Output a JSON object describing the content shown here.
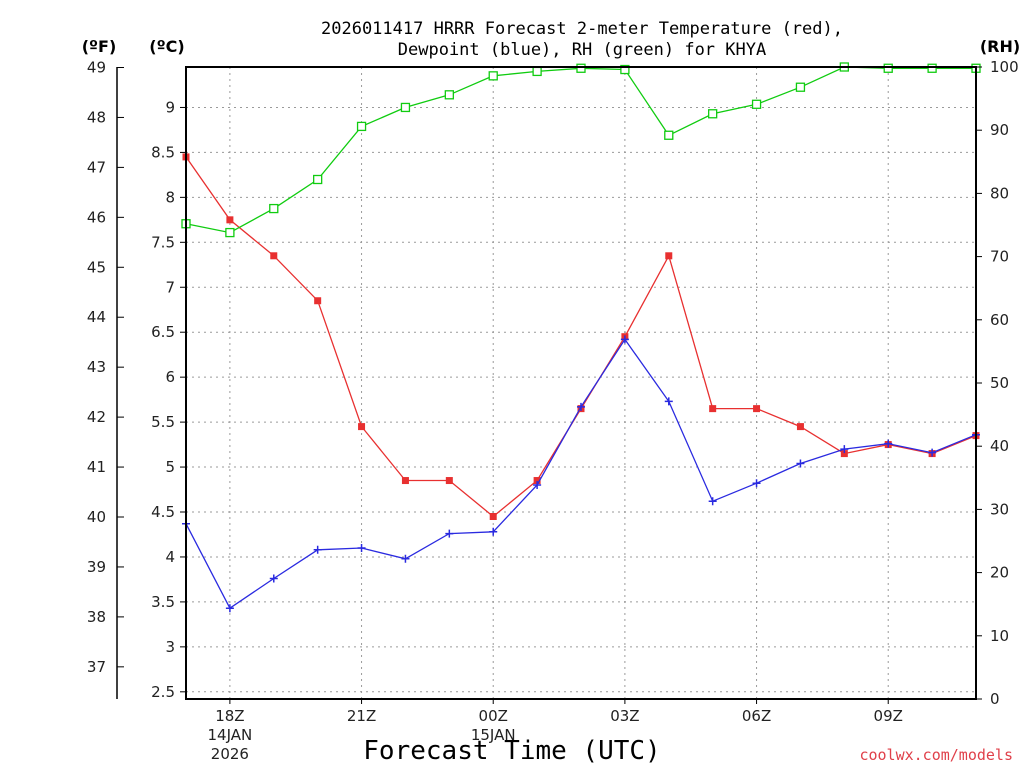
{
  "chart_data": {
    "type": "line",
    "title_line1": "2026011417 HRRR Forecast 2-meter Temperature (red),",
    "title_line2": "Dewpoint (blue), RH (green) for KHYA",
    "unit_f": "(ºF)",
    "unit_c": "(ºC)",
    "unit_rh": "(RH)",
    "xlabel": "Forecast Time (UTC)",
    "credit": "coolwx.com/models",
    "colors": {
      "temp": "#e83030",
      "dewpoint": "#2a2ae0",
      "rh": "#10cc10"
    },
    "x_hours": [
      17,
      18,
      19,
      20,
      21,
      22,
      23,
      24,
      25,
      26,
      27,
      28,
      29,
      30,
      31,
      32,
      33,
      34,
      35
    ],
    "ylim_c": [
      2.42,
      9.45
    ],
    "ylim_f": [
      36.356,
      49.01
    ],
    "ylim_rh": [
      0,
      100
    ],
    "y_ticks_c": [
      "2.5",
      "3",
      "3.5",
      "4",
      "4.5",
      "5",
      "5.5",
      "6",
      "6.5",
      "7",
      "7.5",
      "8",
      "8.5",
      "9"
    ],
    "y_ticks_f": [
      "37",
      "38",
      "39",
      "40",
      "41",
      "42",
      "43",
      "44",
      "45",
      "46",
      "47",
      "48",
      "49"
    ],
    "y_ticks_rh": [
      "0",
      "10",
      "20",
      "30",
      "40",
      "50",
      "60",
      "70",
      "80",
      "90",
      "100"
    ],
    "x_ticks": [
      {
        "hour": 18,
        "lines": [
          "18Z",
          "14JAN",
          "2026"
        ]
      },
      {
        "hour": 21,
        "lines": [
          "21Z"
        ]
      },
      {
        "hour": 24,
        "lines": [
          "00Z",
          "15JAN"
        ]
      },
      {
        "hour": 27,
        "lines": [
          "03Z"
        ]
      },
      {
        "hour": 30,
        "lines": [
          "06Z"
        ]
      },
      {
        "hour": 33,
        "lines": [
          "09Z"
        ]
      }
    ],
    "series": [
      {
        "name": "Temperature (red)",
        "key": "temp",
        "axis": "c",
        "marker": "filled-square",
        "values": [
          8.45,
          7.75,
          7.35,
          6.85,
          5.45,
          4.85,
          4.85,
          4.45,
          4.85,
          5.65,
          6.45,
          7.35,
          5.65,
          5.65,
          5.45,
          5.15,
          5.25,
          5.15,
          5.35
        ]
      },
      {
        "name": "Dewpoint (blue)",
        "key": "dewpoint",
        "axis": "c",
        "marker": "plus",
        "values": [
          4.37,
          3.43,
          3.76,
          4.08,
          4.1,
          3.98,
          4.26,
          4.28,
          4.8,
          5.67,
          6.42,
          5.73,
          4.62,
          4.82,
          5.04,
          5.2,
          5.26,
          5.16,
          5.36
        ]
      },
      {
        "name": "RH (green)",
        "key": "rh",
        "axis": "rh",
        "marker": "open-square",
        "values": [
          75.2,
          73.8,
          77.6,
          82.2,
          90.6,
          93.6,
          95.6,
          98.6,
          99.3,
          99.8,
          99.6,
          89.2,
          92.6,
          94.1,
          96.8,
          100,
          99.8,
          99.8,
          99.8
        ]
      }
    ]
  }
}
